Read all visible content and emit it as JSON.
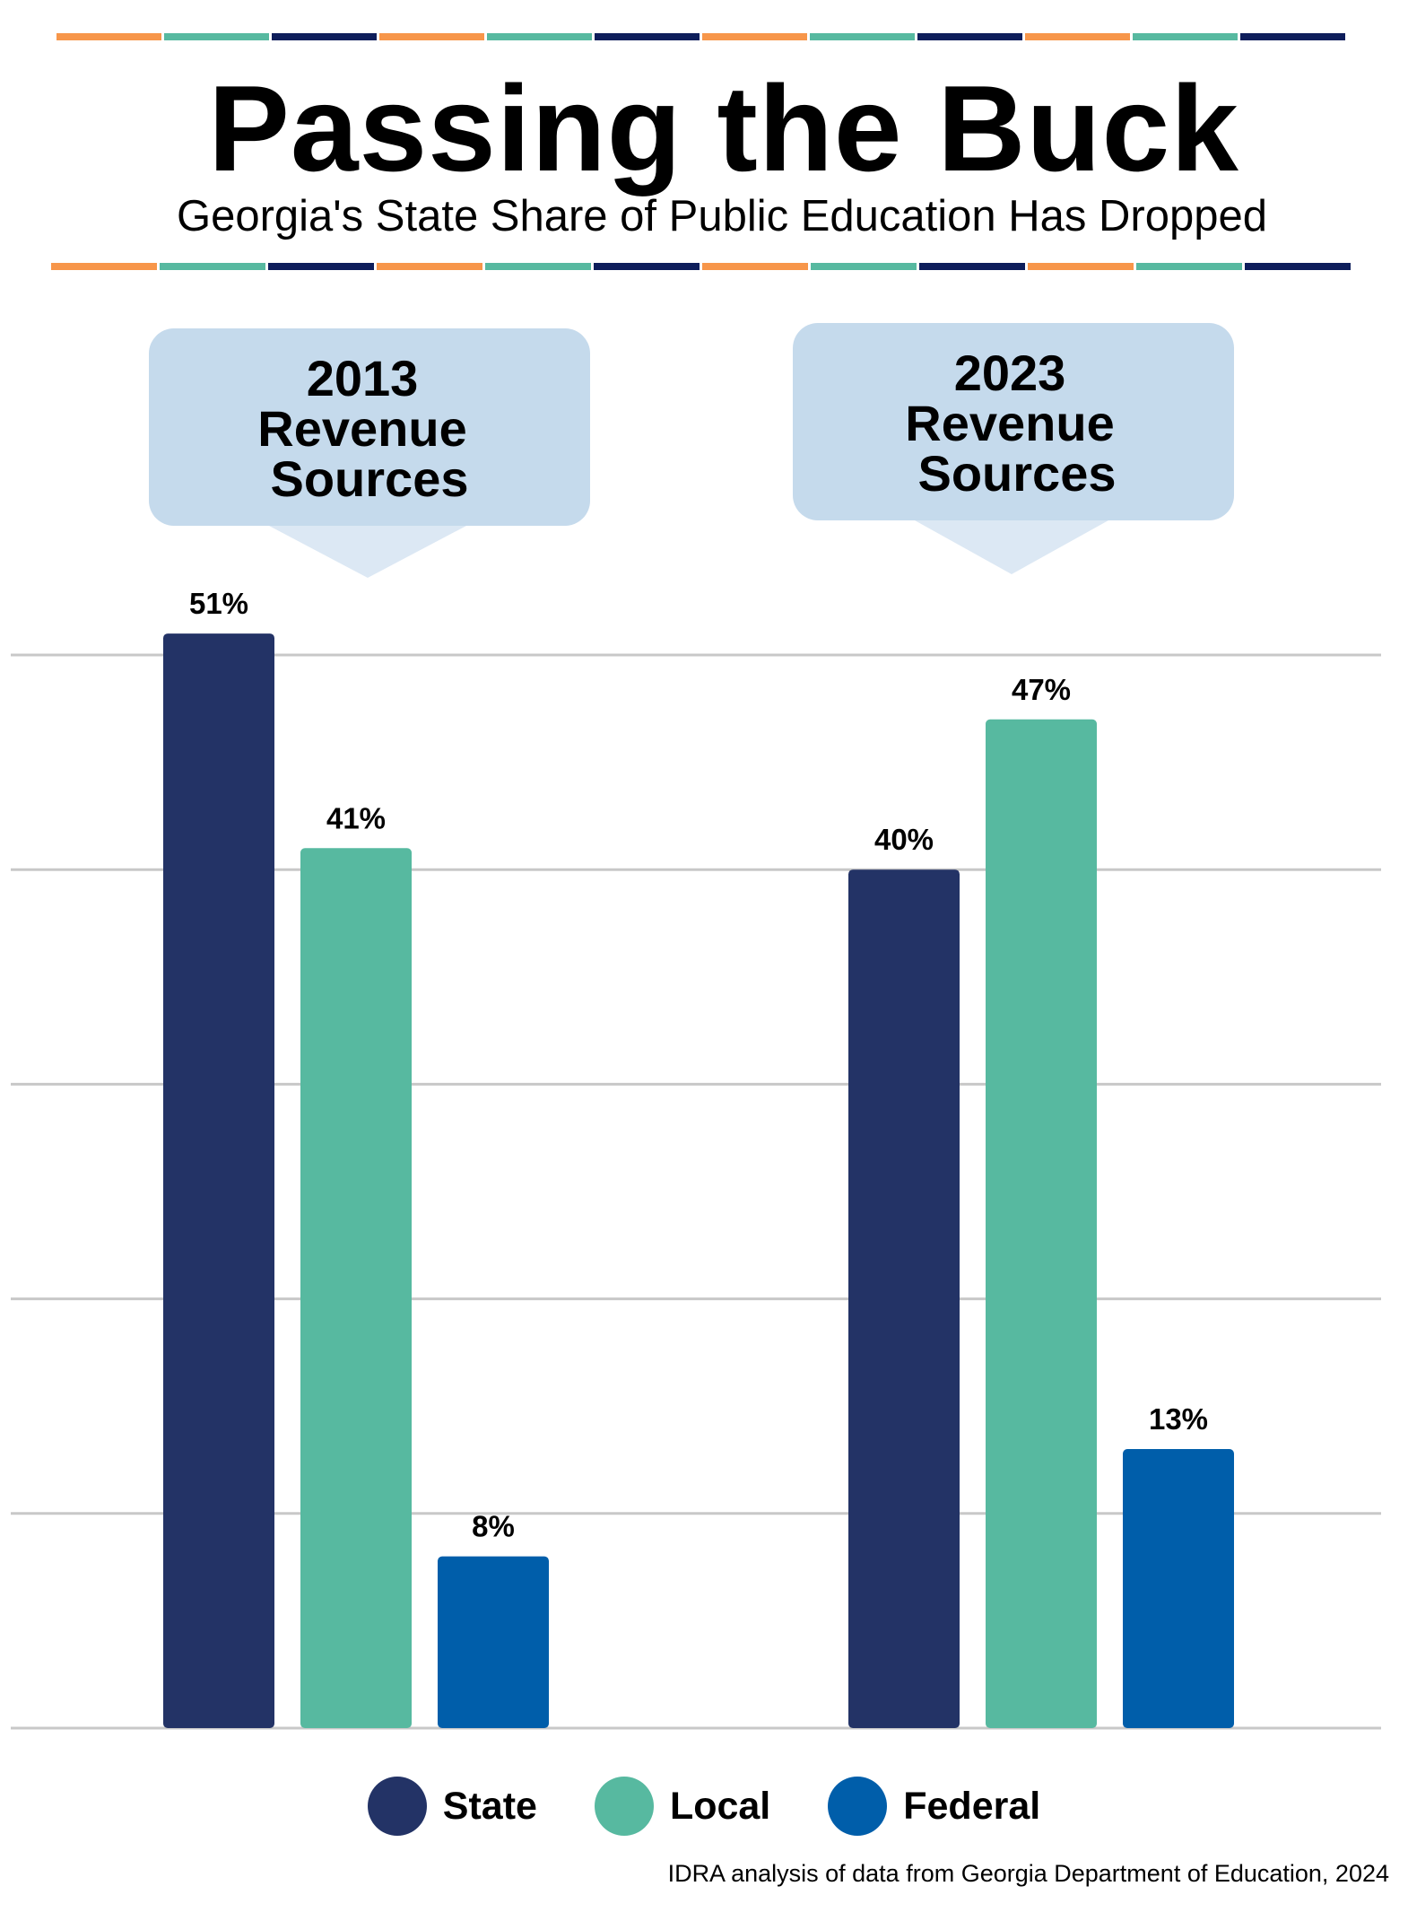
{
  "header": {
    "title": "Passing the Buck",
    "subtitle": "Georgia's State Share of Public Education Has Dropped",
    "stripe_colors": [
      "#F7964A",
      "#57B9A0",
      "#0E1E5B"
    ]
  },
  "colors": {
    "state": "#233366",
    "local": "#57B9A0",
    "federal": "#005EAA",
    "callout": "#C5DAEC",
    "callout_pointer": "#DCE8F4",
    "gridline": "#C8C8C8"
  },
  "chart_data": {
    "type": "bar",
    "categories": [
      "2013\nRevenue\nSources",
      "2023\nRevenue\nSources"
    ],
    "series": [
      {
        "name": "State",
        "values": [
          51,
          40
        ],
        "labels": [
          "51%",
          "40%"
        ]
      },
      {
        "name": "Local",
        "values": [
          41,
          47
        ],
        "labels": [
          "41%",
          "47%"
        ]
      },
      {
        "name": "Federal",
        "values": [
          8,
          13
        ],
        "labels": [
          "8%",
          "13%"
        ]
      }
    ],
    "title": "Passing the Buck",
    "subtitle": "Georgia's State Share of Public Education Has Dropped",
    "xlabel": "",
    "ylabel": "",
    "ylim": [
      0,
      50
    ],
    "grid": true,
    "legend_position": "bottom",
    "source": "IDRA analysis of data from Georgia Department of Education, 2024"
  },
  "legend": {
    "items": [
      {
        "label": "State",
        "color": "#233366"
      },
      {
        "label": "Local",
        "color": "#57B9A0"
      },
      {
        "label": "Federal",
        "color": "#005EAA"
      }
    ]
  },
  "footer": {
    "source": "IDRA analysis of data from Georgia Department of Education, 2024"
  }
}
